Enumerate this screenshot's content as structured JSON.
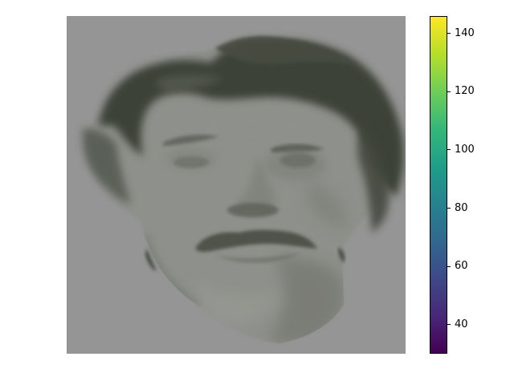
{
  "colorbar": {
    "colormap": "viridis",
    "range": [
      30,
      146
    ],
    "ticks": [
      {
        "value": 40,
        "label": "40"
      },
      {
        "value": 60,
        "label": "60"
      },
      {
        "value": 80,
        "label": "80"
      },
      {
        "value": 100,
        "label": "100"
      },
      {
        "value": 120,
        "label": "120"
      },
      {
        "value": 140,
        "label": "140"
      }
    ],
    "stops": [
      "#440154",
      "#482878",
      "#3e4989",
      "#31688e",
      "#26828e",
      "#1f9e89",
      "#35b779",
      "#6ece58",
      "#b5de2b",
      "#fde725"
    ]
  },
  "image": {
    "subject": "grayscale-face-photo",
    "background_color": "#959595",
    "hair_color": "#3c4135",
    "skin_color": "#8d8f8a"
  }
}
